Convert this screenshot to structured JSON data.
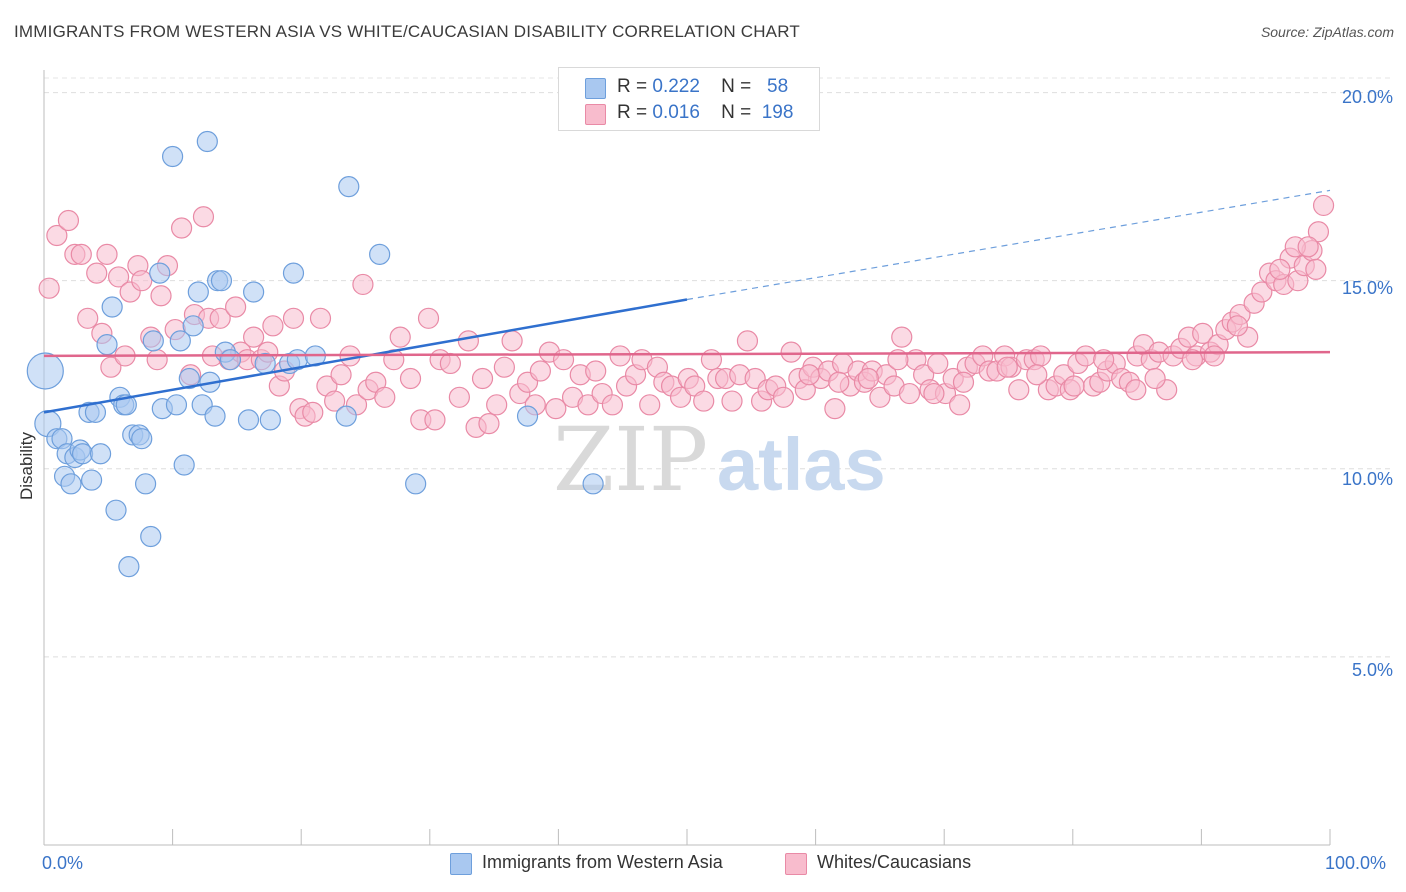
{
  "title": "IMMIGRANTS FROM WESTERN ASIA VS WHITE/CAUCASIAN DISABILITY CORRELATION CHART",
  "source": "Source: ZipAtlas.com",
  "watermark": {
    "zip": "ZIP",
    "atlas": "atlas"
  },
  "legend": {
    "rows": [
      {
        "r_label": "R =",
        "r_value": "0.222",
        "n_label": "N =",
        "n_value": "58",
        "color": "#a9c8f0",
        "border": "#6e9fdc"
      },
      {
        "r_label": "R =",
        "r_value": "0.016",
        "n_label": "N =",
        "n_value": "198",
        "color": "#f8bccd",
        "border": "#e98aa6"
      }
    ]
  },
  "bottom_legend": [
    {
      "label": "Immigrants from Western Asia",
      "color": "#a9c8f0",
      "border": "#6e9fdc"
    },
    {
      "label": "Whites/Caucasians",
      "color": "#f8bccd",
      "border": "#e98aa6"
    }
  ],
  "axes": {
    "ylabel": "Disability",
    "y_ticks": [
      "20.0%",
      "15.0%",
      "10.0%",
      "5.0%"
    ],
    "x_ticks": [
      "0.0%",
      "100.0%"
    ]
  },
  "chart_data": {
    "type": "scatter",
    "title": "IMMIGRANTS FROM WESTERN ASIA VS WHITE/CAUCASIAN DISABILITY CORRELATION CHART",
    "xlabel": "",
    "ylabel": "Disability",
    "xlim": [
      0,
      100
    ],
    "ylim": [
      0,
      20.6
    ],
    "y_ticks": [
      5,
      10,
      15,
      20
    ],
    "x_ticks": [
      0,
      100
    ],
    "grid": "horizontal dashed",
    "legend_position": "top-center",
    "series": [
      {
        "name": "Immigrants from Western Asia",
        "color": "#6e9fdc",
        "fill": "#a9c8f0",
        "trend": {
          "x0": 0,
          "y0": 11.5,
          "x1": 50,
          "y1": 14.5,
          "dashed_to_x": 100,
          "dashed_to_y": 17.4
        },
        "points": [
          [
            0.1,
            12.6
          ],
          [
            0.3,
            11.2
          ],
          [
            1.0,
            10.8
          ],
          [
            1.4,
            10.8
          ],
          [
            1.6,
            9.8
          ],
          [
            1.8,
            10.4
          ],
          [
            2.1,
            9.6
          ],
          [
            2.4,
            10.3
          ],
          [
            2.8,
            10.5
          ],
          [
            3.0,
            10.4
          ],
          [
            3.5,
            11.5
          ],
          [
            3.7,
            9.7
          ],
          [
            4.0,
            11.5
          ],
          [
            4.4,
            10.4
          ],
          [
            4.9,
            13.3
          ],
          [
            5.3,
            14.3
          ],
          [
            5.6,
            8.9
          ],
          [
            5.9,
            11.9
          ],
          [
            6.2,
            11.7
          ],
          [
            6.4,
            11.7
          ],
          [
            6.6,
            7.4
          ],
          [
            6.9,
            10.9
          ],
          [
            7.4,
            10.9
          ],
          [
            7.6,
            10.8
          ],
          [
            7.9,
            9.6
          ],
          [
            8.3,
            8.2
          ],
          [
            8.5,
            13.4
          ],
          [
            9.0,
            15.2
          ],
          [
            9.2,
            11.6
          ],
          [
            10.0,
            18.3
          ],
          [
            10.3,
            11.7
          ],
          [
            10.6,
            13.4
          ],
          [
            10.9,
            10.1
          ],
          [
            11.3,
            12.4
          ],
          [
            11.6,
            13.8
          ],
          [
            12.0,
            14.7
          ],
          [
            12.3,
            11.7
          ],
          [
            12.7,
            18.7
          ],
          [
            12.9,
            12.3
          ],
          [
            13.3,
            11.4
          ],
          [
            13.5,
            15.0
          ],
          [
            13.8,
            15.0
          ],
          [
            14.1,
            13.1
          ],
          [
            14.5,
            12.9
          ],
          [
            15.9,
            11.3
          ],
          [
            16.3,
            14.7
          ],
          [
            17.2,
            12.8
          ],
          [
            17.6,
            11.3
          ],
          [
            19.1,
            12.8
          ],
          [
            19.4,
            15.2
          ],
          [
            19.7,
            12.9
          ],
          [
            21.1,
            13.0
          ],
          [
            23.5,
            11.4
          ],
          [
            23.7,
            17.5
          ],
          [
            26.1,
            15.7
          ],
          [
            28.9,
            9.6
          ],
          [
            37.6,
            11.4
          ],
          [
            42.7,
            9.6
          ]
        ]
      },
      {
        "name": "Whites/Caucasians",
        "color": "#e98aa6",
        "fill": "#f8bccd",
        "trend": {
          "x0": 0,
          "y0": 13.0,
          "x1": 100,
          "y1": 13.1
        },
        "points": [
          [
            0.4,
            14.8
          ],
          [
            1.0,
            16.2
          ],
          [
            1.9,
            16.6
          ],
          [
            2.4,
            15.7
          ],
          [
            2.9,
            15.7
          ],
          [
            3.4,
            14.0
          ],
          [
            4.1,
            15.2
          ],
          [
            4.5,
            13.6
          ],
          [
            4.9,
            15.7
          ],
          [
            5.2,
            12.7
          ],
          [
            5.8,
            15.1
          ],
          [
            6.3,
            13.0
          ],
          [
            6.7,
            14.7
          ],
          [
            7.3,
            15.4
          ],
          [
            7.6,
            15.0
          ],
          [
            8.3,
            13.5
          ],
          [
            8.8,
            12.9
          ],
          [
            9.1,
            14.6
          ],
          [
            9.6,
            15.4
          ],
          [
            10.2,
            13.7
          ],
          [
            10.7,
            16.4
          ],
          [
            11.4,
            12.5
          ],
          [
            11.7,
            14.1
          ],
          [
            12.4,
            16.7
          ],
          [
            12.8,
            14.0
          ],
          [
            13.1,
            13.0
          ],
          [
            13.7,
            14.0
          ],
          [
            14.4,
            12.9
          ],
          [
            14.9,
            14.3
          ],
          [
            15.3,
            13.1
          ],
          [
            15.8,
            12.9
          ],
          [
            16.3,
            13.5
          ],
          [
            16.9,
            12.9
          ],
          [
            17.4,
            13.1
          ],
          [
            17.8,
            13.8
          ],
          [
            18.3,
            12.2
          ],
          [
            18.7,
            12.6
          ],
          [
            19.4,
            14.0
          ],
          [
            19.9,
            11.6
          ],
          [
            20.3,
            11.4
          ],
          [
            20.9,
            11.5
          ],
          [
            21.5,
            14.0
          ],
          [
            22.0,
            12.2
          ],
          [
            22.6,
            11.8
          ],
          [
            23.1,
            12.5
          ],
          [
            23.8,
            13.0
          ],
          [
            24.3,
            11.7
          ],
          [
            24.8,
            14.9
          ],
          [
            25.2,
            12.1
          ],
          [
            25.8,
            12.3
          ],
          [
            26.5,
            11.9
          ],
          [
            27.2,
            12.9
          ],
          [
            27.7,
            13.5
          ],
          [
            28.5,
            12.4
          ],
          [
            29.3,
            11.3
          ],
          [
            29.9,
            14.0
          ],
          [
            30.4,
            11.3
          ],
          [
            30.8,
            12.9
          ],
          [
            31.6,
            12.8
          ],
          [
            32.3,
            11.9
          ],
          [
            33.0,
            13.4
          ],
          [
            33.6,
            11.1
          ],
          [
            34.1,
            12.4
          ],
          [
            34.6,
            11.2
          ],
          [
            35.2,
            11.7
          ],
          [
            35.8,
            12.7
          ],
          [
            36.4,
            13.4
          ],
          [
            37.0,
            12.0
          ],
          [
            37.6,
            12.3
          ],
          [
            38.2,
            11.7
          ],
          [
            38.6,
            12.6
          ],
          [
            39.3,
            13.1
          ],
          [
            39.8,
            11.6
          ],
          [
            40.4,
            12.9
          ],
          [
            41.1,
            11.9
          ],
          [
            41.7,
            12.5
          ],
          [
            42.3,
            11.7
          ],
          [
            42.9,
            12.6
          ],
          [
            43.4,
            12.0
          ],
          [
            44.2,
            11.7
          ],
          [
            44.8,
            13.0
          ],
          [
            45.3,
            12.2
          ],
          [
            46.0,
            12.5
          ],
          [
            46.5,
            12.9
          ],
          [
            47.1,
            11.7
          ],
          [
            47.7,
            12.7
          ],
          [
            48.2,
            12.3
          ],
          [
            48.8,
            12.2
          ],
          [
            49.5,
            11.9
          ],
          [
            50.1,
            12.4
          ],
          [
            50.6,
            12.2
          ],
          [
            51.3,
            11.8
          ],
          [
            51.9,
            12.9
          ],
          [
            52.4,
            12.4
          ],
          [
            53.0,
            12.4
          ],
          [
            53.5,
            11.8
          ],
          [
            54.1,
            12.5
          ],
          [
            54.7,
            13.4
          ],
          [
            55.3,
            12.4
          ],
          [
            55.8,
            11.8
          ],
          [
            56.3,
            12.1
          ],
          [
            56.9,
            12.2
          ],
          [
            57.5,
            11.9
          ],
          [
            58.1,
            13.1
          ],
          [
            58.7,
            12.4
          ],
          [
            59.2,
            12.1
          ],
          [
            59.8,
            12.7
          ],
          [
            60.4,
            12.4
          ],
          [
            61.0,
            12.6
          ],
          [
            61.5,
            11.6
          ],
          [
            62.1,
            12.8
          ],
          [
            62.7,
            12.2
          ],
          [
            63.3,
            12.6
          ],
          [
            63.8,
            12.3
          ],
          [
            64.4,
            12.6
          ],
          [
            65.0,
            11.9
          ],
          [
            65.5,
            12.5
          ],
          [
            66.1,
            12.2
          ],
          [
            66.7,
            13.5
          ],
          [
            67.3,
            12.0
          ],
          [
            67.8,
            12.9
          ],
          [
            68.4,
            12.5
          ],
          [
            68.9,
            12.1
          ],
          [
            69.5,
            12.8
          ],
          [
            70.1,
            12.0
          ],
          [
            70.7,
            12.4
          ],
          [
            71.2,
            11.7
          ],
          [
            71.8,
            12.7
          ],
          [
            72.4,
            12.8
          ],
          [
            73.0,
            13.0
          ],
          [
            73.5,
            12.6
          ],
          [
            74.1,
            12.6
          ],
          [
            74.7,
            13.0
          ],
          [
            75.2,
            12.7
          ],
          [
            75.8,
            12.1
          ],
          [
            76.4,
            12.9
          ],
          [
            77.0,
            12.9
          ],
          [
            77.5,
            13.0
          ],
          [
            78.1,
            12.1
          ],
          [
            78.7,
            12.2
          ],
          [
            79.3,
            12.5
          ],
          [
            79.8,
            12.1
          ],
          [
            80.4,
            12.8
          ],
          [
            81.0,
            13.0
          ],
          [
            81.6,
            12.2
          ],
          [
            82.1,
            12.3
          ],
          [
            82.7,
            12.6
          ],
          [
            83.3,
            12.8
          ],
          [
            83.8,
            12.4
          ],
          [
            84.4,
            12.3
          ],
          [
            85.0,
            13.0
          ],
          [
            85.5,
            13.3
          ],
          [
            86.1,
            12.9
          ],
          [
            86.7,
            13.1
          ],
          [
            87.3,
            12.1
          ],
          [
            87.8,
            13.0
          ],
          [
            88.4,
            13.2
          ],
          [
            89.0,
            13.5
          ],
          [
            89.6,
            13.0
          ],
          [
            90.1,
            13.6
          ],
          [
            90.7,
            13.1
          ],
          [
            91.3,
            13.3
          ],
          [
            91.9,
            13.7
          ],
          [
            92.4,
            13.9
          ],
          [
            93.0,
            14.1
          ],
          [
            93.6,
            13.5
          ],
          [
            94.1,
            14.4
          ],
          [
            94.7,
            14.7
          ],
          [
            95.3,
            15.2
          ],
          [
            95.8,
            15.0
          ],
          [
            96.4,
            14.9
          ],
          [
            96.9,
            15.6
          ],
          [
            97.5,
            15.0
          ],
          [
            98.0,
            15.4
          ],
          [
            98.6,
            15.8
          ],
          [
            99.1,
            16.3
          ],
          [
            99.5,
            17.0
          ],
          [
            96.1,
            15.3
          ],
          [
            97.3,
            15.9
          ],
          [
            98.3,
            15.9
          ],
          [
            98.9,
            15.3
          ],
          [
            92.8,
            13.8
          ],
          [
            91.0,
            13.0
          ],
          [
            89.3,
            12.9
          ],
          [
            86.4,
            12.4
          ],
          [
            84.9,
            12.1
          ],
          [
            82.4,
            12.9
          ],
          [
            80.1,
            12.2
          ],
          [
            77.2,
            12.5
          ],
          [
            74.9,
            12.7
          ],
          [
            71.5,
            12.3
          ],
          [
            69.2,
            12.0
          ],
          [
            66.4,
            12.9
          ],
          [
            64.1,
            12.4
          ],
          [
            61.8,
            12.3
          ],
          [
            59.5,
            12.5
          ]
        ]
      }
    ]
  }
}
